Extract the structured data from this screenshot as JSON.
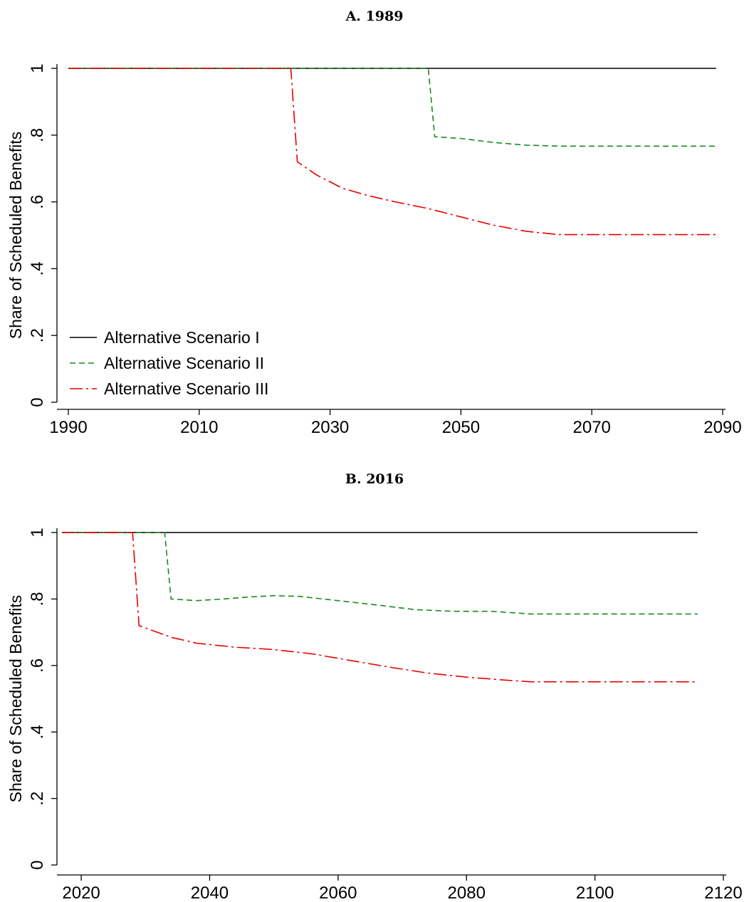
{
  "chart_data": [
    {
      "type": "line",
      "title": "A. 1989",
      "xlabel": "",
      "ylabel": "Share of Scheduled Benefits",
      "xlim": [
        1990,
        2090
      ],
      "ylim": [
        0,
        1
      ],
      "xticks": [
        "1990",
        "2010",
        "2030",
        "2050",
        "2070",
        "2090"
      ],
      "yticks": [
        "0",
        ".2",
        ".4",
        ".6",
        ".8",
        "1"
      ],
      "grid": false,
      "legend_position": "bottom-left",
      "series": [
        {
          "name": "Alternative Scenario I",
          "color": "#000000",
          "dash": "solid",
          "points": [
            [
              1990,
              1.0
            ],
            [
              2089,
              1.0
            ]
          ]
        },
        {
          "name": "Alternative Scenario II",
          "color": "#1a8a1a",
          "dash": "dash",
          "points": [
            [
              1990,
              1.0
            ],
            [
              2045,
              1.0
            ],
            [
              2046,
              0.795
            ],
            [
              2050,
              0.79
            ],
            [
              2055,
              0.778
            ],
            [
              2060,
              0.77
            ],
            [
              2065,
              0.767
            ],
            [
              2089,
              0.767
            ]
          ]
        },
        {
          "name": "Alternative Scenario III",
          "color": "#e60000",
          "dash": "dashdot",
          "points": [
            [
              1990,
              1.0
            ],
            [
              2024,
              1.0
            ],
            [
              2025,
              0.72
            ],
            [
              2028,
              0.68
            ],
            [
              2032,
              0.64
            ],
            [
              2036,
              0.618
            ],
            [
              2040,
              0.6
            ],
            [
              2045,
              0.58
            ],
            [
              2050,
              0.555
            ],
            [
              2055,
              0.53
            ],
            [
              2060,
              0.512
            ],
            [
              2065,
              0.502
            ],
            [
              2089,
              0.502
            ]
          ]
        }
      ]
    },
    {
      "type": "line",
      "title": "B. 2016",
      "xlabel": "",
      "ylabel": "Share of Scheduled Benefits",
      "xlim": [
        2016,
        2120
      ],
      "ylim": [
        0,
        1
      ],
      "xticks": [
        "2020",
        "2040",
        "2060",
        "2080",
        "2100",
        "2120"
      ],
      "yticks": [
        "0",
        ".2",
        ".4",
        ".6",
        ".8",
        "1"
      ],
      "grid": false,
      "series": [
        {
          "name": "Alternative Scenario I",
          "color": "#000000",
          "dash": "solid",
          "points": [
            [
              2017,
              1.0
            ],
            [
              2116,
              1.0
            ]
          ]
        },
        {
          "name": "Alternative Scenario II",
          "color": "#1a8a1a",
          "dash": "dash",
          "points": [
            [
              2017,
              1.0
            ],
            [
              2033,
              1.0
            ],
            [
              2034,
              0.8
            ],
            [
              2038,
              0.795
            ],
            [
              2042,
              0.8
            ],
            [
              2046,
              0.806
            ],
            [
              2050,
              0.81
            ],
            [
              2054,
              0.808
            ],
            [
              2060,
              0.795
            ],
            [
              2066,
              0.782
            ],
            [
              2072,
              0.768
            ],
            [
              2078,
              0.763
            ],
            [
              2084,
              0.763
            ],
            [
              2090,
              0.755
            ],
            [
              2116,
              0.755
            ]
          ]
        },
        {
          "name": "Alternative Scenario III",
          "color": "#e60000",
          "dash": "dashdot",
          "points": [
            [
              2017,
              1.0
            ],
            [
              2028,
              1.0
            ],
            [
              2029,
              0.72
            ],
            [
              2034,
              0.685
            ],
            [
              2038,
              0.667
            ],
            [
              2044,
              0.655
            ],
            [
              2050,
              0.648
            ],
            [
              2056,
              0.635
            ],
            [
              2062,
              0.615
            ],
            [
              2068,
              0.595
            ],
            [
              2074,
              0.577
            ],
            [
              2080,
              0.565
            ],
            [
              2086,
              0.556
            ],
            [
              2090,
              0.551
            ],
            [
              2116,
              0.551
            ]
          ]
        }
      ]
    }
  ]
}
